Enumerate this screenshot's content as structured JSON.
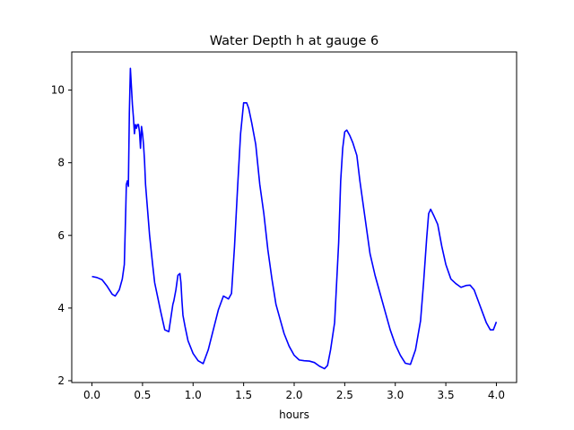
{
  "chart_data": {
    "type": "line",
    "title": "Water Depth h at gauge 6",
    "xlabel": "hours",
    "ylabel": "",
    "xlim": [
      -0.2,
      4.2
    ],
    "ylim": [
      1.95,
      11.05
    ],
    "xticks": [
      0.0,
      0.5,
      1.0,
      1.5,
      2.0,
      2.5,
      3.0,
      3.5,
      4.0
    ],
    "xtick_labels": [
      "0.0",
      "0.5",
      "1.0",
      "1.5",
      "2.0",
      "2.5",
      "3.0",
      "3.5",
      "4.0"
    ],
    "yticks": [
      2,
      4,
      6,
      8,
      10
    ],
    "ytick_labels": [
      "2",
      "4",
      "6",
      "8",
      "10"
    ],
    "grid": false,
    "series": [
      {
        "color": "#0000ff",
        "x": [
          0.0,
          0.05,
          0.1,
          0.15,
          0.2,
          0.23,
          0.27,
          0.3,
          0.32,
          0.335,
          0.34,
          0.35,
          0.36,
          0.37,
          0.38,
          0.39,
          0.4,
          0.41,
          0.42,
          0.43,
          0.44,
          0.45,
          0.46,
          0.47,
          0.48,
          0.49,
          0.5,
          0.51,
          0.52,
          0.53,
          0.55,
          0.57,
          0.6,
          0.62,
          0.65,
          0.68,
          0.72,
          0.76,
          0.8,
          0.81,
          0.83,
          0.85,
          0.87,
          0.88,
          0.89,
          0.9,
          0.92,
          0.95,
          1.0,
          1.05,
          1.1,
          1.15,
          1.2,
          1.25,
          1.3,
          1.32,
          1.35,
          1.38,
          1.41,
          1.44,
          1.47,
          1.5,
          1.53,
          1.55,
          1.58,
          1.62,
          1.66,
          1.7,
          1.74,
          1.78,
          1.82,
          1.86,
          1.9,
          1.95,
          2.0,
          2.05,
          2.1,
          2.15,
          2.2,
          2.25,
          2.3,
          2.33,
          2.36,
          2.4,
          2.44,
          2.46,
          2.48,
          2.5,
          2.52,
          2.55,
          2.58,
          2.62,
          2.65,
          2.7,
          2.75,
          2.8,
          2.85,
          2.9,
          2.95,
          3.0,
          3.05,
          3.1,
          3.15,
          3.2,
          3.25,
          3.28,
          3.31,
          3.33,
          3.35,
          3.38,
          3.42,
          3.46,
          3.5,
          3.55,
          3.6,
          3.65,
          3.7,
          3.74,
          3.78,
          3.82,
          3.86,
          3.9,
          3.94,
          3.97,
          4.0
        ],
        "y": [
          4.87,
          4.84,
          4.78,
          4.6,
          4.38,
          4.33,
          4.5,
          4.8,
          5.2,
          6.8,
          7.4,
          7.5,
          7.35,
          9.4,
          10.6,
          10.1,
          9.6,
          9.25,
          8.8,
          9.05,
          8.95,
          9.05,
          9.05,
          8.85,
          8.4,
          9.0,
          8.8,
          8.5,
          8.05,
          7.4,
          6.7,
          6.0,
          5.2,
          4.7,
          4.3,
          3.9,
          3.4,
          3.35,
          4.1,
          4.2,
          4.5,
          4.9,
          4.95,
          4.7,
          4.2,
          3.8,
          3.5,
          3.1,
          2.75,
          2.55,
          2.47,
          2.85,
          3.4,
          3.95,
          4.33,
          4.3,
          4.25,
          4.4,
          5.7,
          7.3,
          8.8,
          9.65,
          9.65,
          9.5,
          9.1,
          8.5,
          7.4,
          6.6,
          5.6,
          4.8,
          4.1,
          3.7,
          3.3,
          2.95,
          2.7,
          2.57,
          2.55,
          2.54,
          2.5,
          2.4,
          2.33,
          2.42,
          2.85,
          3.6,
          5.8,
          7.5,
          8.4,
          8.85,
          8.9,
          8.75,
          8.55,
          8.2,
          7.5,
          6.5,
          5.5,
          4.9,
          4.4,
          3.9,
          3.4,
          3.0,
          2.7,
          2.48,
          2.45,
          2.85,
          3.65,
          4.7,
          5.9,
          6.6,
          6.72,
          6.55,
          6.3,
          5.7,
          5.2,
          4.8,
          4.67,
          4.57,
          4.62,
          4.63,
          4.5,
          4.2,
          3.9,
          3.6,
          3.4,
          3.4,
          3.62
        ]
      }
    ]
  }
}
